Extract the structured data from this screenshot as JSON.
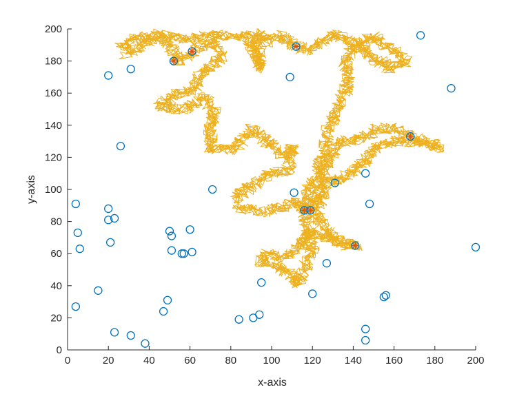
{
  "chart_data": {
    "type": "scatter",
    "xlabel": "x-axis",
    "ylabel": "y-axis",
    "xlim": [
      0,
      200
    ],
    "ylim": [
      0,
      200
    ],
    "xticks": [
      "0",
      "20",
      "40",
      "60",
      "80",
      "100",
      "120",
      "140",
      "160",
      "180",
      "200"
    ],
    "yticks": [
      "0",
      "20",
      "40",
      "60",
      "80",
      "100",
      "120",
      "140",
      "160",
      "180",
      "200"
    ],
    "grid": false,
    "colors": {
      "points": "#0072BD",
      "walk": "#EDB120",
      "visited": "#D95319"
    },
    "points": [
      {
        "x": 4,
        "y": 91
      },
      {
        "x": 5,
        "y": 73
      },
      {
        "x": 6,
        "y": 63
      },
      {
        "x": 4,
        "y": 27
      },
      {
        "x": 15,
        "y": 37
      },
      {
        "x": 20,
        "y": 171
      },
      {
        "x": 31,
        "y": 175
      },
      {
        "x": 26,
        "y": 127
      },
      {
        "x": 20,
        "y": 88
      },
      {
        "x": 23,
        "y": 82
      },
      {
        "x": 20,
        "y": 81
      },
      {
        "x": 21,
        "y": 67
      },
      {
        "x": 23,
        "y": 11
      },
      {
        "x": 31,
        "y": 9
      },
      {
        "x": 38,
        "y": 4
      },
      {
        "x": 47,
        "y": 24
      },
      {
        "x": 49,
        "y": 31
      },
      {
        "x": 50,
        "y": 74
      },
      {
        "x": 51,
        "y": 71
      },
      {
        "x": 51,
        "y": 62
      },
      {
        "x": 56,
        "y": 60
      },
      {
        "x": 57,
        "y": 60
      },
      {
        "x": 60,
        "y": 75
      },
      {
        "x": 61,
        "y": 61
      },
      {
        "x": 71,
        "y": 100
      },
      {
        "x": 84,
        "y": 19
      },
      {
        "x": 91,
        "y": 20
      },
      {
        "x": 94,
        "y": 22
      },
      {
        "x": 95,
        "y": 42
      },
      {
        "x": 109,
        "y": 170
      },
      {
        "x": 111,
        "y": 98
      },
      {
        "x": 120,
        "y": 35
      },
      {
        "x": 127,
        "y": 54
      },
      {
        "x": 131,
        "y": 104
      },
      {
        "x": 146,
        "y": 110
      },
      {
        "x": 148,
        "y": 91
      },
      {
        "x": 146,
        "y": 13
      },
      {
        "x": 146,
        "y": 6
      },
      {
        "x": 155,
        "y": 33
      },
      {
        "x": 156,
        "y": 34
      },
      {
        "x": 173,
        "y": 196
      },
      {
        "x": 188,
        "y": 163
      },
      {
        "x": 200,
        "y": 64
      },
      {
        "x": 52,
        "y": 180
      },
      {
        "x": 61,
        "y": 186
      },
      {
        "x": 112,
        "y": 189
      },
      {
        "x": 168,
        "y": 133
      },
      {
        "x": 116,
        "y": 87
      },
      {
        "x": 119,
        "y": 87
      },
      {
        "x": 141,
        "y": 65
      }
    ],
    "visited": [
      {
        "x": 52,
        "y": 180
      },
      {
        "x": 61,
        "y": 186
      },
      {
        "x": 112,
        "y": 189
      },
      {
        "x": 168,
        "y": 133
      },
      {
        "x": 116,
        "y": 87
      },
      {
        "x": 119,
        "y": 87
      },
      {
        "x": 141,
        "y": 65
      }
    ],
    "walk_waypoints": [
      {
        "x": 25,
        "y": 188
      },
      {
        "x": 35,
        "y": 195
      },
      {
        "x": 48,
        "y": 193
      },
      {
        "x": 55,
        "y": 180
      },
      {
        "x": 61,
        "y": 186
      },
      {
        "x": 70,
        "y": 192
      },
      {
        "x": 76,
        "y": 182
      },
      {
        "x": 65,
        "y": 172
      },
      {
        "x": 62,
        "y": 162
      },
      {
        "x": 50,
        "y": 158
      },
      {
        "x": 45,
        "y": 152
      },
      {
        "x": 58,
        "y": 150
      },
      {
        "x": 66,
        "y": 158
      },
      {
        "x": 72,
        "y": 150
      },
      {
        "x": 70,
        "y": 140
      },
      {
        "x": 70,
        "y": 125
      },
      {
        "x": 82,
        "y": 125
      },
      {
        "x": 90,
        "y": 138
      },
      {
        "x": 98,
        "y": 130
      },
      {
        "x": 104,
        "y": 122
      },
      {
        "x": 110,
        "y": 126
      },
      {
        "x": 108,
        "y": 112
      },
      {
        "x": 100,
        "y": 110
      },
      {
        "x": 92,
        "y": 104
      },
      {
        "x": 82,
        "y": 95
      },
      {
        "x": 86,
        "y": 88
      },
      {
        "x": 98,
        "y": 86
      },
      {
        "x": 112,
        "y": 92
      },
      {
        "x": 116,
        "y": 87
      },
      {
        "x": 119,
        "y": 87
      },
      {
        "x": 122,
        "y": 95
      },
      {
        "x": 125,
        "y": 108
      },
      {
        "x": 128,
        "y": 120
      },
      {
        "x": 135,
        "y": 130
      },
      {
        "x": 145,
        "y": 132
      },
      {
        "x": 152,
        "y": 138
      },
      {
        "x": 160,
        "y": 138
      },
      {
        "x": 168,
        "y": 133
      },
      {
        "x": 175,
        "y": 130
      },
      {
        "x": 182,
        "y": 126
      },
      {
        "x": 174,
        "y": 130
      },
      {
        "x": 160,
        "y": 130
      },
      {
        "x": 150,
        "y": 126
      },
      {
        "x": 146,
        "y": 118
      },
      {
        "x": 140,
        "y": 110
      },
      {
        "x": 128,
        "y": 104
      },
      {
        "x": 124,
        "y": 94
      },
      {
        "x": 122,
        "y": 86
      },
      {
        "x": 124,
        "y": 80
      },
      {
        "x": 130,
        "y": 70
      },
      {
        "x": 136,
        "y": 66
      },
      {
        "x": 141,
        "y": 65
      },
      {
        "x": 134,
        "y": 67
      },
      {
        "x": 124,
        "y": 72
      },
      {
        "x": 118,
        "y": 74
      },
      {
        "x": 116,
        "y": 68
      },
      {
        "x": 112,
        "y": 62
      },
      {
        "x": 106,
        "y": 58
      },
      {
        "x": 98,
        "y": 60
      },
      {
        "x": 95,
        "y": 55
      },
      {
        "x": 104,
        "y": 52
      },
      {
        "x": 110,
        "y": 46
      },
      {
        "x": 112,
        "y": 40
      },
      {
        "x": 116,
        "y": 50
      },
      {
        "x": 120,
        "y": 62
      },
      {
        "x": 118,
        "y": 74
      },
      {
        "x": 116,
        "y": 87
      },
      {
        "x": 118,
        "y": 100
      },
      {
        "x": 122,
        "y": 110
      },
      {
        "x": 126,
        "y": 125
      },
      {
        "x": 128,
        "y": 138
      },
      {
        "x": 132,
        "y": 150
      },
      {
        "x": 136,
        "y": 160
      },
      {
        "x": 138,
        "y": 170
      },
      {
        "x": 136,
        "y": 180
      },
      {
        "x": 140,
        "y": 190
      },
      {
        "x": 150,
        "y": 195
      },
      {
        "x": 160,
        "y": 186
      },
      {
        "x": 166,
        "y": 180
      },
      {
        "x": 158,
        "y": 175
      },
      {
        "x": 150,
        "y": 182
      },
      {
        "x": 142,
        "y": 190
      },
      {
        "x": 132,
        "y": 197
      },
      {
        "x": 124,
        "y": 192
      },
      {
        "x": 118,
        "y": 186
      },
      {
        "x": 112,
        "y": 189
      },
      {
        "x": 104,
        "y": 196
      },
      {
        "x": 98,
        "y": 192
      },
      {
        "x": 93,
        "y": 198
      },
      {
        "x": 94,
        "y": 186
      },
      {
        "x": 94,
        "y": 175
      },
      {
        "x": 92,
        "y": 185
      },
      {
        "x": 88,
        "y": 196
      },
      {
        "x": 80,
        "y": 196
      },
      {
        "x": 70,
        "y": 196
      },
      {
        "x": 58,
        "y": 193
      },
      {
        "x": 45,
        "y": 197
      },
      {
        "x": 36,
        "y": 190
      },
      {
        "x": 28,
        "y": 184
      }
    ]
  }
}
